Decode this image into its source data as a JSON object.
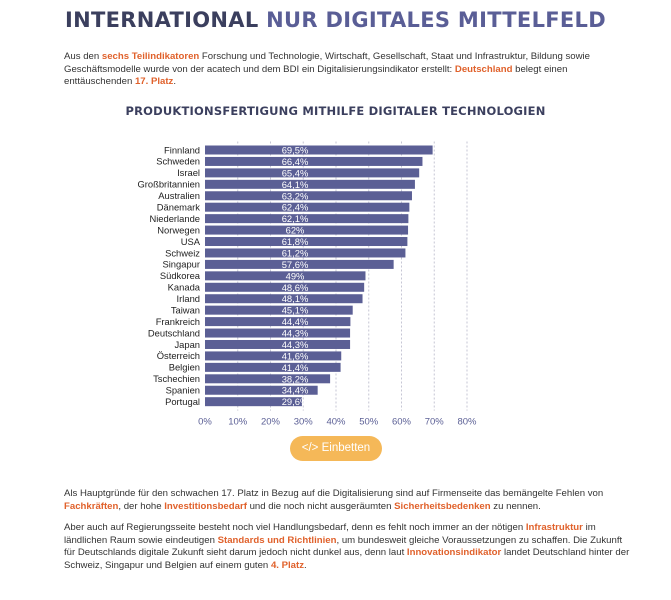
{
  "header": {
    "title_part1": "INTERNATIONAL",
    "title_part2": "NUR DIGITALES MITTELFELD"
  },
  "intro": {
    "s1": "Aus den ",
    "h1": "sechs Teilindikatoren",
    "s2": " Forschung und Technologie, Wirtschaft, Gesellschaft, Staat und Infrastruktur, Bildung sowie Geschäftsmodelle wurde von der acatech und dem BDI ein Digitalisierungsindikator erstellt: ",
    "h2": "Deutschland",
    "s3": " belegt einen enttäuschenden ",
    "h3": "17. Platz",
    "s4": "."
  },
  "chart_data": {
    "type": "bar",
    "orientation": "horizontal",
    "title": "PRODUKTIONSFERTIGUNG MITHILFE DIGITALER TECHNOLOGIEN",
    "categories": [
      "Finnland",
      "Schweden",
      "Israel",
      "Großbritannien",
      "Australien",
      "Dänemark",
      "Niederlande",
      "Norwegen",
      "USA",
      "Schweiz",
      "Singapur",
      "Südkorea",
      "Kanada",
      "Irland",
      "Taiwan",
      "Frankreich",
      "Deutschland",
      "Japan",
      "Österreich",
      "Belgien",
      "Tschechien",
      "Spanien",
      "Portugal"
    ],
    "values": [
      69.5,
      66.4,
      65.4,
      64.1,
      63.2,
      62.4,
      62.1,
      62,
      61.8,
      61.2,
      57.6,
      49,
      48.6,
      48.1,
      45.1,
      44.4,
      44.3,
      44.3,
      41.6,
      41.4,
      38.2,
      34.4,
      29.6
    ],
    "value_labels": [
      "69,5%",
      "66,4%",
      "65,4%",
      "64,1%",
      "63,2%",
      "62,4%",
      "62,1%",
      "62%",
      "61,8%",
      "61,2%",
      "57,6%",
      "49%",
      "48,6%",
      "48,1%",
      "45,1%",
      "44,4%",
      "44,3%",
      "44,3%",
      "41,6%",
      "41,4%",
      "38,2%",
      "34,4%",
      "29,6%"
    ],
    "xlim": [
      0,
      80
    ],
    "xticks": [
      "0%",
      "10%",
      "20%",
      "30%",
      "40%",
      "50%",
      "60%",
      "70%",
      "80%"
    ],
    "grid": "vertical dashed",
    "bar_color": "#5b5f95",
    "label_color": "#ffffff",
    "tick_color": "#5b5f95"
  },
  "embed": {
    "icon": "</>",
    "label": "Einbetten"
  },
  "outro1": {
    "s1": "Als Hauptgründe für den schwachen 17. Platz in Bezug auf die Digitalisierung sind auf Firmenseite das bemängelte Fehlen von ",
    "h1": "Fachkräften",
    "s2": ", der hohe ",
    "h2": "Investitionsbedarf",
    "s3": " und die noch nicht ausgeräumten ",
    "h3": "Sicherheitsbedenken",
    "s4": " zu nennen."
  },
  "outro2": {
    "s1": "Aber auch auf Regierungsseite besteht noch viel Handlungsbedarf, denn es fehlt noch immer an der nötigen ",
    "h1": "Infrastruktur",
    "s2": " im ländlichen Raum sowie eindeutigen ",
    "h2": "Standards und Richtlinien",
    "s3": ", um bundesweit gleiche Voraussetzungen zu schaffen. Die Zukunft für Deutschlands digitale Zukunft sieht darum jedoch nicht dunkel aus, denn laut ",
    "h3": "Innovationsindikator",
    "s4": " landet Deutschland hinter der Schweiz, Singapur und Belgien auf einem guten ",
    "h4": "4. Platz",
    "s5": "."
  },
  "colors": {
    "accent": "#e0612b",
    "title_dark": "#3b3f5e",
    "title_blue": "#5a5e96",
    "button": "#f5b858"
  }
}
